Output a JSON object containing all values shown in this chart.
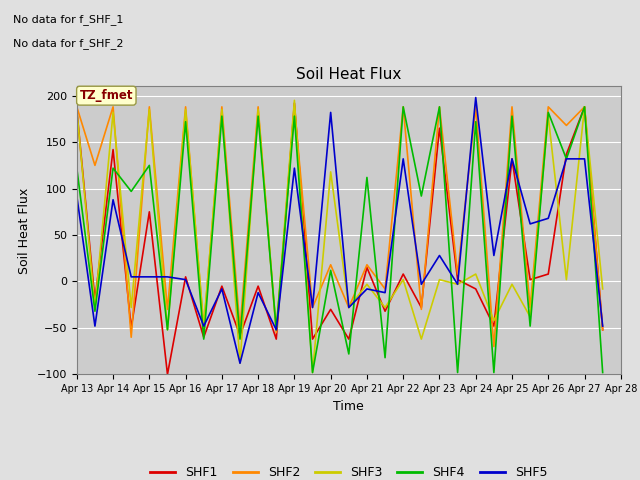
{
  "title": "Soil Heat Flux",
  "xlabel": "Time",
  "ylabel": "Soil Heat Flux",
  "ylim": [
    -100,
    210
  ],
  "yticks": [
    -100,
    -50,
    0,
    50,
    100,
    150,
    200
  ],
  "no_data_text_1": "No data for f_SHF_1",
  "no_data_text_2": "No data for f_SHF_2",
  "tz_label": "TZ_fmet",
  "bg_color": "#e0e0e0",
  "plot_bg_color": "#cccccc",
  "legend_entries": [
    "SHF1",
    "SHF2",
    "SHF3",
    "SHF4",
    "SHF5"
  ],
  "legend_colors": [
    "#dd0000",
    "#ff8800",
    "#cccc00",
    "#00bb00",
    "#0000cc"
  ],
  "shf1_color": "#dd0000",
  "shf2_color": "#ff8800",
  "shf3_color": "#cccc00",
  "shf4_color": "#00bb00",
  "shf5_color": "#0000cc",
  "shf1_x": [
    13,
    13.5,
    14,
    14.5,
    15,
    15.5,
    16,
    16.5,
    17,
    17.5,
    18,
    18.5,
    19,
    19.5,
    20,
    20.5,
    21,
    21.5,
    22,
    22.5,
    23,
    23.5,
    24,
    24.5,
    25,
    25.5,
    26,
    26.5,
    27,
    27.5
  ],
  "shf1_y": [
    185,
    -20,
    142,
    -50,
    75,
    -100,
    5,
    -60,
    -5,
    -58,
    -5,
    -62,
    192,
    -62,
    -30,
    -62,
    15,
    -32,
    8,
    -28,
    165,
    2,
    -8,
    -48,
    132,
    2,
    8,
    137,
    188,
    -52
  ],
  "shf2_x": [
    13,
    13.5,
    14,
    14.5,
    15,
    15.5,
    16,
    16.5,
    17,
    17.5,
    18,
    18.5,
    19,
    19.5,
    20,
    20.5,
    21,
    21.5,
    22,
    22.5,
    23,
    23.5,
    24,
    24.5,
    25,
    25.5,
    26,
    26.5,
    27,
    27.5
  ],
  "shf2_y": [
    188,
    125,
    188,
    -60,
    188,
    -30,
    188,
    -50,
    188,
    -50,
    188,
    -55,
    188,
    -28,
    18,
    -28,
    18,
    -8,
    188,
    -30,
    188,
    8,
    188,
    -70,
    188,
    -28,
    188,
    168,
    188,
    -52
  ],
  "shf3_x": [
    13,
    13.5,
    14,
    14.5,
    15,
    15.5,
    16,
    16.5,
    17,
    17.5,
    18,
    18.5,
    19,
    19.5,
    20,
    20.5,
    21,
    21.5,
    22,
    22.5,
    23,
    23.5,
    24,
    24.5,
    25,
    25.5,
    26,
    26.5,
    27,
    27.5
  ],
  "shf3_y": [
    185,
    -28,
    182,
    -28,
    185,
    -52,
    185,
    -48,
    185,
    -88,
    185,
    -52,
    195,
    -98,
    118,
    -28,
    -3,
    -28,
    2,
    -62,
    2,
    -3,
    8,
    -42,
    -3,
    -38,
    178,
    2,
    188,
    -8
  ],
  "shf4_x": [
    13,
    13.5,
    14,
    14.5,
    15,
    15.5,
    16,
    16.5,
    17,
    17.5,
    18,
    18.5,
    19,
    19.5,
    20,
    20.5,
    21,
    21.5,
    22,
    22.5,
    23,
    23.5,
    24,
    24.5,
    25,
    25.5,
    26,
    26.5,
    27,
    27.5
  ],
  "shf4_y": [
    122,
    -32,
    122,
    97,
    125,
    -52,
    172,
    -62,
    178,
    -62,
    178,
    -52,
    178,
    -98,
    12,
    -78,
    112,
    -82,
    188,
    92,
    188,
    -98,
    172,
    -98,
    178,
    -48,
    182,
    132,
    188,
    -98
  ],
  "shf5_x": [
    13,
    13.5,
    14,
    14.5,
    15,
    15.5,
    16,
    16.5,
    17,
    17.5,
    18,
    18.5,
    19,
    19.5,
    20,
    20.5,
    21,
    21.5,
    22,
    22.5,
    23,
    23.5,
    24,
    24.5,
    25,
    25.5,
    26,
    26.5,
    27,
    27.5
  ],
  "shf5_y": [
    92,
    -48,
    88,
    5,
    5,
    5,
    2,
    -48,
    -8,
    -88,
    -12,
    -52,
    122,
    -28,
    182,
    -28,
    -8,
    -12,
    132,
    -3,
    28,
    -3,
    198,
    28,
    132,
    62,
    68,
    132,
    132,
    -48
  ]
}
